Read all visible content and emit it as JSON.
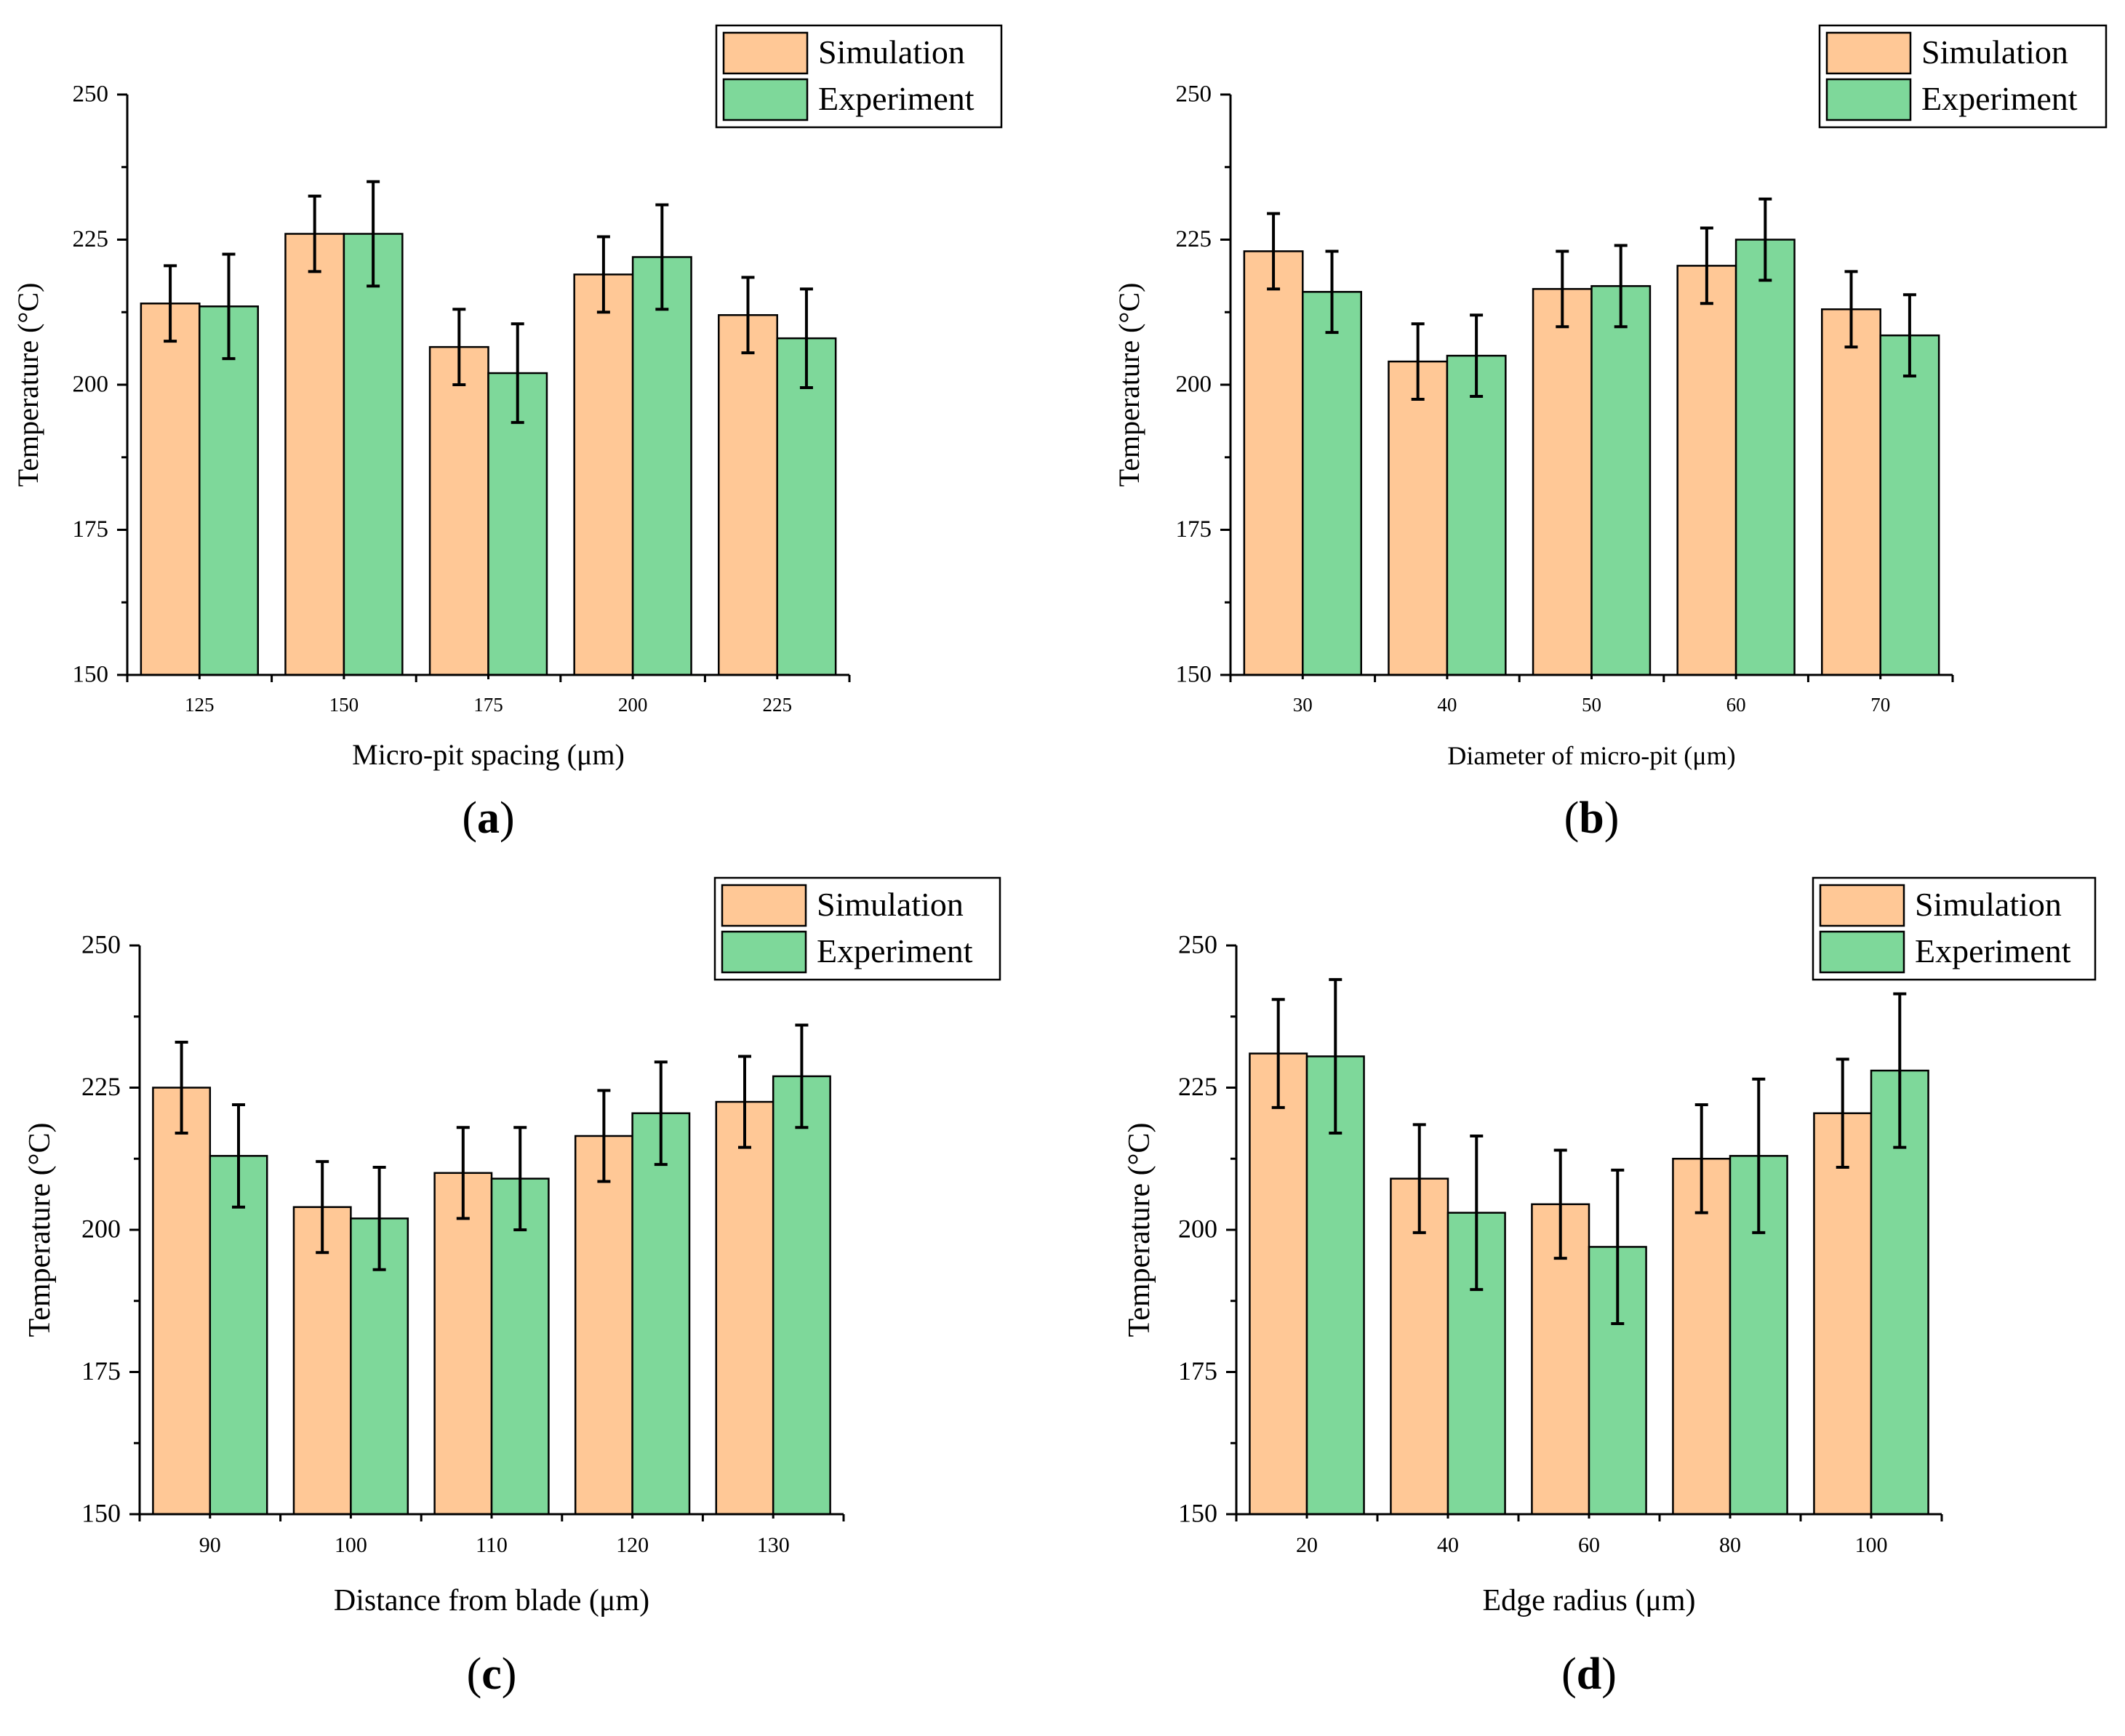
{
  "colors": {
    "simulation": "#FFC896",
    "experiment": "#7ED89A",
    "axis": "#000000"
  },
  "legend": {
    "simulation_label": "Simulation",
    "experiment_label": "Experiment"
  },
  "chart_data": [
    {
      "id": "a",
      "type": "bar",
      "panel_label": "a",
      "xlabel": "Micro-pit spacing (μm)",
      "ylabel": "Temperature (°C)",
      "ylim": [
        150,
        250
      ],
      "yticks": [
        150,
        175,
        200,
        225,
        250
      ],
      "categories": [
        "125",
        "150",
        "175",
        "200",
        "225"
      ],
      "series": [
        {
          "name": "Simulation",
          "values": [
            214,
            226,
            206.5,
            219,
            212
          ],
          "errors": [
            6.5,
            6.5,
            6.5,
            6.5,
            6.5
          ]
        },
        {
          "name": "Experiment",
          "values": [
            213.5,
            226,
            202,
            222,
            208
          ],
          "errors": [
            9,
            9,
            8.5,
            9,
            8.5
          ]
        }
      ]
    },
    {
      "id": "b",
      "type": "bar",
      "panel_label": "b",
      "xlabel": "Diameter of micro-pit (μm)",
      "ylabel": "Temperature (°C)",
      "ylim": [
        150,
        250
      ],
      "yticks": [
        150,
        175,
        200,
        225,
        250
      ],
      "categories": [
        "30",
        "40",
        "50",
        "60",
        "70"
      ],
      "series": [
        {
          "name": "Simulation",
          "values": [
            223,
            204,
            216.5,
            220.5,
            213
          ],
          "errors": [
            6.5,
            6.5,
            6.5,
            6.5,
            6.5
          ]
        },
        {
          "name": "Experiment",
          "values": [
            216,
            205,
            217,
            225,
            208.5
          ],
          "errors": [
            7,
            7,
            7,
            7,
            7
          ]
        }
      ]
    },
    {
      "id": "c",
      "type": "bar",
      "panel_label": "c",
      "xlabel": "Distance from blade (μm)",
      "ylabel": "Temperature (°C)",
      "ylim": [
        150,
        250
      ],
      "yticks": [
        150,
        175,
        200,
        225,
        250
      ],
      "categories": [
        "90",
        "100",
        "110",
        "120",
        "130"
      ],
      "series": [
        {
          "name": "Simulation",
          "values": [
            225,
            204,
            210,
            216.5,
            222.5
          ],
          "errors": [
            8,
            8,
            8,
            8,
            8
          ]
        },
        {
          "name": "Experiment",
          "values": [
            213,
            202,
            209,
            220.5,
            227
          ],
          "errors": [
            9,
            9,
            9,
            9,
            9
          ]
        }
      ]
    },
    {
      "id": "d",
      "type": "bar",
      "panel_label": "d",
      "xlabel": "Edge radius (μm)",
      "ylabel": "Temperature (°C)",
      "ylim": [
        150,
        250
      ],
      "yticks": [
        150,
        175,
        200,
        225,
        250
      ],
      "categories": [
        "20",
        "40",
        "60",
        "80",
        "100"
      ],
      "series": [
        {
          "name": "Simulation",
          "values": [
            231,
            209,
            204.5,
            212.5,
            220.5
          ],
          "errors": [
            9.5,
            9.5,
            9.5,
            9.5,
            9.5
          ]
        },
        {
          "name": "Experiment",
          "values": [
            230.5,
            203,
            197,
            213,
            228
          ],
          "errors": [
            13.5,
            13.5,
            13.5,
            13.5,
            13.5
          ]
        }
      ]
    }
  ]
}
